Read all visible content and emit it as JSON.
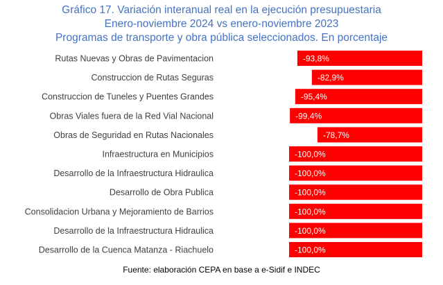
{
  "title_lines": [
    "Gráfico 17. Variación interanual real en la ejecución presupuestaria",
    "Enero-noviembre 2024 vs enero-noviembre 2023",
    "Programas de transporte y obra pública seleccionados. En porcentaje"
  ],
  "source": "Fuente: elaboración CEPA en base a e-Sidif e INDEC",
  "chart_data": {
    "type": "bar",
    "orientation": "horizontal",
    "title": "Gráfico 17. Variación interanual real en la ejecución presupuestaria",
    "categories": [
      "Rutas Nuevas y Obras de Pavimentacion",
      "Construccion de Rutas Seguras",
      "Construccion de Tuneles y Puentes Grandes",
      "Obras Viales fuera de la Red Vial Nacional",
      "Obras de Seguridad en Rutas Nacionales",
      "Infraestructura en Municipios",
      "Desarrollo de la Infraestructura Hidraulica",
      "Desarrollo de Obra Publica",
      "Consolidacion Urbana y Mejoramiento de Barrios",
      "Desarrollo de la Infraestructura Hidraulica",
      "Desarrollo de la Cuenca Matanza - Riachuelo"
    ],
    "values": [
      -93.8,
      -82.9,
      -95.4,
      -99.4,
      -78.7,
      -100.0,
      -100.0,
      -100.0,
      -100.0,
      -100.0,
      -100.0
    ],
    "data_labels": [
      "-93,8%",
      "-82,9%",
      "-95,4%",
      "-99,4%",
      "-78,7%",
      "-100,0%",
      "-100,0%",
      "-100,0%",
      "-100,0%",
      "-100,0%",
      "-100,0%"
    ],
    "xlim": [
      -100,
      0
    ],
    "grid": false,
    "bar_color": "#ff0000",
    "title_color": "#4472c4"
  }
}
